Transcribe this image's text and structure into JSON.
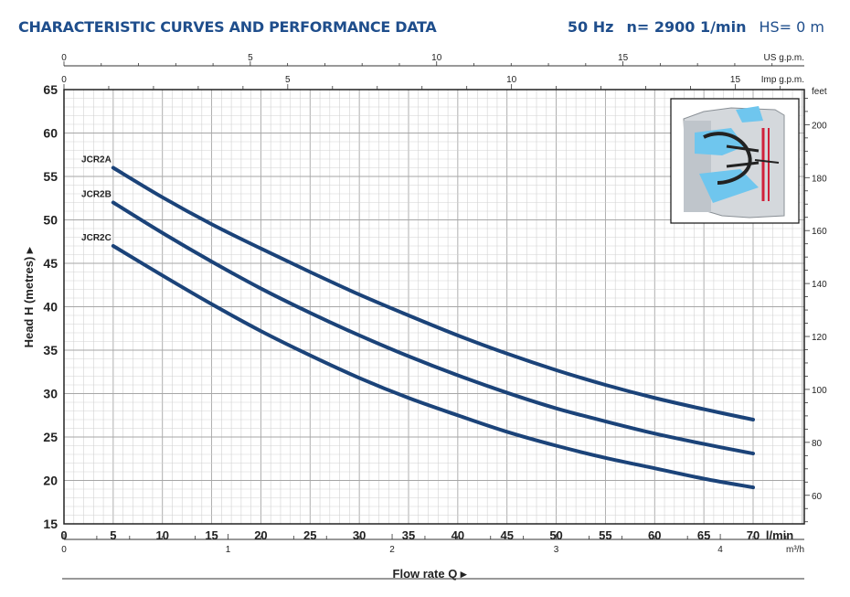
{
  "header": {
    "title": "CHARACTERISTIC CURVES AND PERFORMANCE DATA",
    "frequency": "50 Hz",
    "speed": "n= 2900  1/min",
    "hs": "HS= 0 m"
  },
  "chart_data": {
    "type": "line",
    "title": "CHARACTERISTIC CURVES AND PERFORMANCE DATA",
    "xlabel": "Flow rate Q",
    "ylabel": "Head H (metres)",
    "xlim": [
      0,
      75
    ],
    "ylim": [
      15,
      65
    ],
    "x_unit": "l/min",
    "x_ticks": [
      0,
      5,
      10,
      15,
      20,
      25,
      30,
      35,
      40,
      45,
      50,
      55,
      60,
      65,
      70
    ],
    "y_ticks": [
      15,
      20,
      25,
      30,
      35,
      40,
      45,
      50,
      55,
      60,
      65
    ],
    "grid": true,
    "secondary_axes": {
      "top_us_gpm": {
        "label": "US g.p.m.",
        "ticks": [
          0,
          5,
          10,
          15
        ]
      },
      "top_imp_gpm": {
        "label": "Imp g.p.m.",
        "ticks": [
          0,
          5,
          10,
          15
        ]
      },
      "bottom_m3h": {
        "label": "m³/h",
        "ticks": [
          0,
          1,
          2,
          3,
          4
        ]
      },
      "right_feet": {
        "label": "feet",
        "ticks": [
          60,
          80,
          100,
          120,
          140,
          160,
          180,
          200
        ]
      }
    },
    "series": [
      {
        "name": "JCR2A",
        "x": [
          5,
          10,
          15,
          20,
          25,
          30,
          35,
          40,
          45,
          50,
          55,
          60,
          65,
          70
        ],
        "y": [
          56,
          52.6,
          49.5,
          46.7,
          44,
          41.4,
          39,
          36.7,
          34.6,
          32.7,
          31,
          29.5,
          28.2,
          27
        ]
      },
      {
        "name": "JCR2B",
        "x": [
          5,
          10,
          15,
          20,
          25,
          30,
          35,
          40,
          45,
          50,
          55,
          60,
          65,
          70
        ],
        "y": [
          52,
          48.5,
          45.2,
          42.1,
          39.3,
          36.7,
          34.3,
          32.1,
          30.1,
          28.3,
          26.8,
          25.4,
          24.2,
          23.1
        ]
      },
      {
        "name": "JCR2C",
        "x": [
          5,
          10,
          15,
          20,
          25,
          30,
          35,
          40,
          45,
          50,
          55,
          60,
          65,
          70
        ],
        "y": [
          47,
          43.6,
          40.3,
          37.2,
          34.4,
          31.8,
          29.5,
          27.5,
          25.6,
          24,
          22.6,
          21.4,
          20.2,
          19.2
        ]
      }
    ],
    "colors": {
      "curve": "#1b4379",
      "grid": "#b9b9b9",
      "header": "#1f4e8c"
    }
  }
}
